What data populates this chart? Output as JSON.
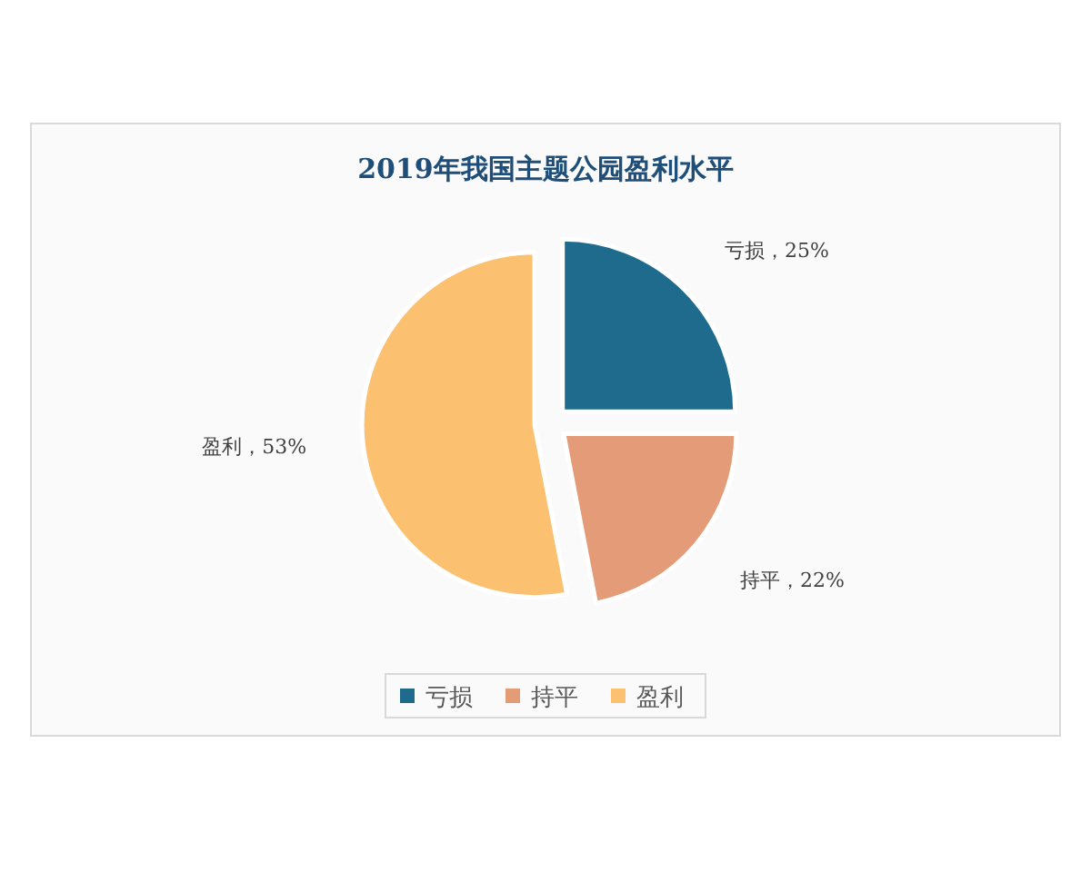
{
  "chart_data": {
    "type": "pie",
    "title": "2019年我国主题公园盈利水平",
    "categories": [
      "亏损",
      "持平",
      "盈利"
    ],
    "values": [
      25,
      22,
      53
    ],
    "colors": [
      "#1f6b8e",
      "#e49c78",
      "#fbc171"
    ],
    "value_labels": [
      "亏损，25%",
      "持平，22%",
      "盈利，53%"
    ],
    "legend": "bottom"
  }
}
